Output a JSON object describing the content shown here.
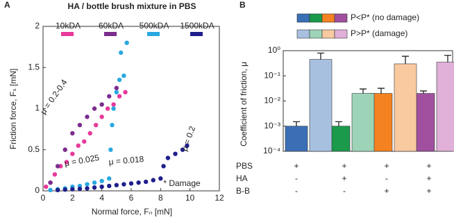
{
  "chart_data": [
    {
      "type": "scatter",
      "panel": "A",
      "title": "HA / bottle brush mixture in PBS",
      "xlabel": "Normal force, Fₙ [mN]",
      "ylabel": "Friction force, Fₛ [mN]",
      "xlim": [
        0,
        12
      ],
      "ylim": [
        0,
        2
      ],
      "xticks": [
        0,
        2,
        4,
        6,
        8,
        10,
        12
      ],
      "yticks": [
        0,
        0.5,
        1,
        1.5,
        2
      ],
      "series": [
        {
          "name": "10kDA",
          "color": "#e8399a",
          "x": [
            0.2,
            0.5,
            0.8,
            1.2,
            1.6,
            2.0,
            2.4,
            2.8,
            3.2,
            3.6,
            4.0,
            4.4,
            4.8,
            5.2,
            5.6
          ],
          "values": [
            0.05,
            0.1,
            0.2,
            0.3,
            0.35,
            0.45,
            0.55,
            0.6,
            0.7,
            0.8,
            0.9,
            1.0,
            1.05,
            1.15,
            1.2
          ]
        },
        {
          "name": "60kDA",
          "color": "#7b2d8e",
          "x": [
            0.5,
            1.0,
            1.5,
            2.0,
            2.5,
            3.0,
            3.5,
            4.0,
            4.5,
            5.0
          ],
          "values": [
            0.1,
            0.3,
            0.5,
            0.7,
            0.8,
            0.9,
            1.0,
            1.05,
            1.15,
            1.25
          ]
        },
        {
          "name": "500kDA",
          "color": "#29a8e0",
          "x": [
            0.5,
            1.0,
            1.5,
            2.0,
            2.5,
            3.0,
            3.5,
            4.0,
            4.5,
            4.6,
            4.7,
            4.8,
            5.0,
            5.2,
            5.5,
            5.3,
            5.7
          ],
          "values": [
            0.01,
            0.02,
            0.03,
            0.05,
            0.06,
            0.08,
            0.1,
            0.12,
            0.15,
            0.5,
            0.8,
            1.0,
            1.2,
            1.35,
            1.4,
            1.68,
            1.8
          ]
        },
        {
          "name": "1500kDA",
          "color": "#1f1f8c",
          "x": [
            1.0,
            1.5,
            2.0,
            2.5,
            3.0,
            3.5,
            4.0,
            4.5,
            5.0,
            5.5,
            6.0,
            6.5,
            7.0,
            7.5,
            8.0,
            8.2,
            8.5,
            9.0,
            9.5,
            9.8
          ],
          "values": [
            0.01,
            0.015,
            0.02,
            0.025,
            0.03,
            0.04,
            0.05,
            0.06,
            0.07,
            0.08,
            0.09,
            0.1,
            0.11,
            0.13,
            0.15,
            0.3,
            0.4,
            0.45,
            0.5,
            0.55
          ]
        }
      ],
      "annotations": [
        "μ = 0.2-0.4",
        "μ = 0.025",
        "μ = 0.018",
        "μ = 0.2",
        "* Damage"
      ]
    },
    {
      "type": "bar",
      "panel": "B",
      "ylabel": "Coefficient of friction, μ",
      "log_scale": true,
      "ylim": [
        0.0001,
        1
      ],
      "yticks": [
        {
          "value": 0.0001,
          "label": "10⁻⁴"
        },
        {
          "value": 0.001,
          "label": "10⁻³"
        },
        {
          "value": 0.01,
          "label": "10⁻²"
        },
        {
          "value": 0.1,
          "label": "10⁻¹"
        },
        {
          "value": 1,
          "label": "10⁰"
        }
      ],
      "series": [
        {
          "name": "P<P* (no damage)",
          "colors": [
            "#3a6fb5",
            "#1a9a4a",
            "#f58220",
            "#a0509f"
          ],
          "values": [
            0.001,
            0.001,
            0.02,
            0.02
          ],
          "errors": [
            0.0005,
            0.0005,
            0.012,
            0.005
          ]
        },
        {
          "name": "P>P* (damage)",
          "colors": [
            "#a8c0e0",
            "#9dd4b8",
            "#f9c9a0",
            "#e0b0d8"
          ],
          "values": [
            0.45,
            0.02,
            0.3,
            0.35
          ],
          "errors": [
            0.35,
            0.01,
            0.3,
            0.3
          ]
        }
      ],
      "conditions": [
        {
          "label": "PBS",
          "marks": [
            "+",
            "+",
            "+",
            "+"
          ]
        },
        {
          "label": "HA",
          "marks": [
            "-",
            "+",
            "-",
            "+"
          ]
        },
        {
          "label": "B-B",
          "marks": [
            "-",
            "-",
            "+",
            "+"
          ]
        }
      ]
    }
  ]
}
